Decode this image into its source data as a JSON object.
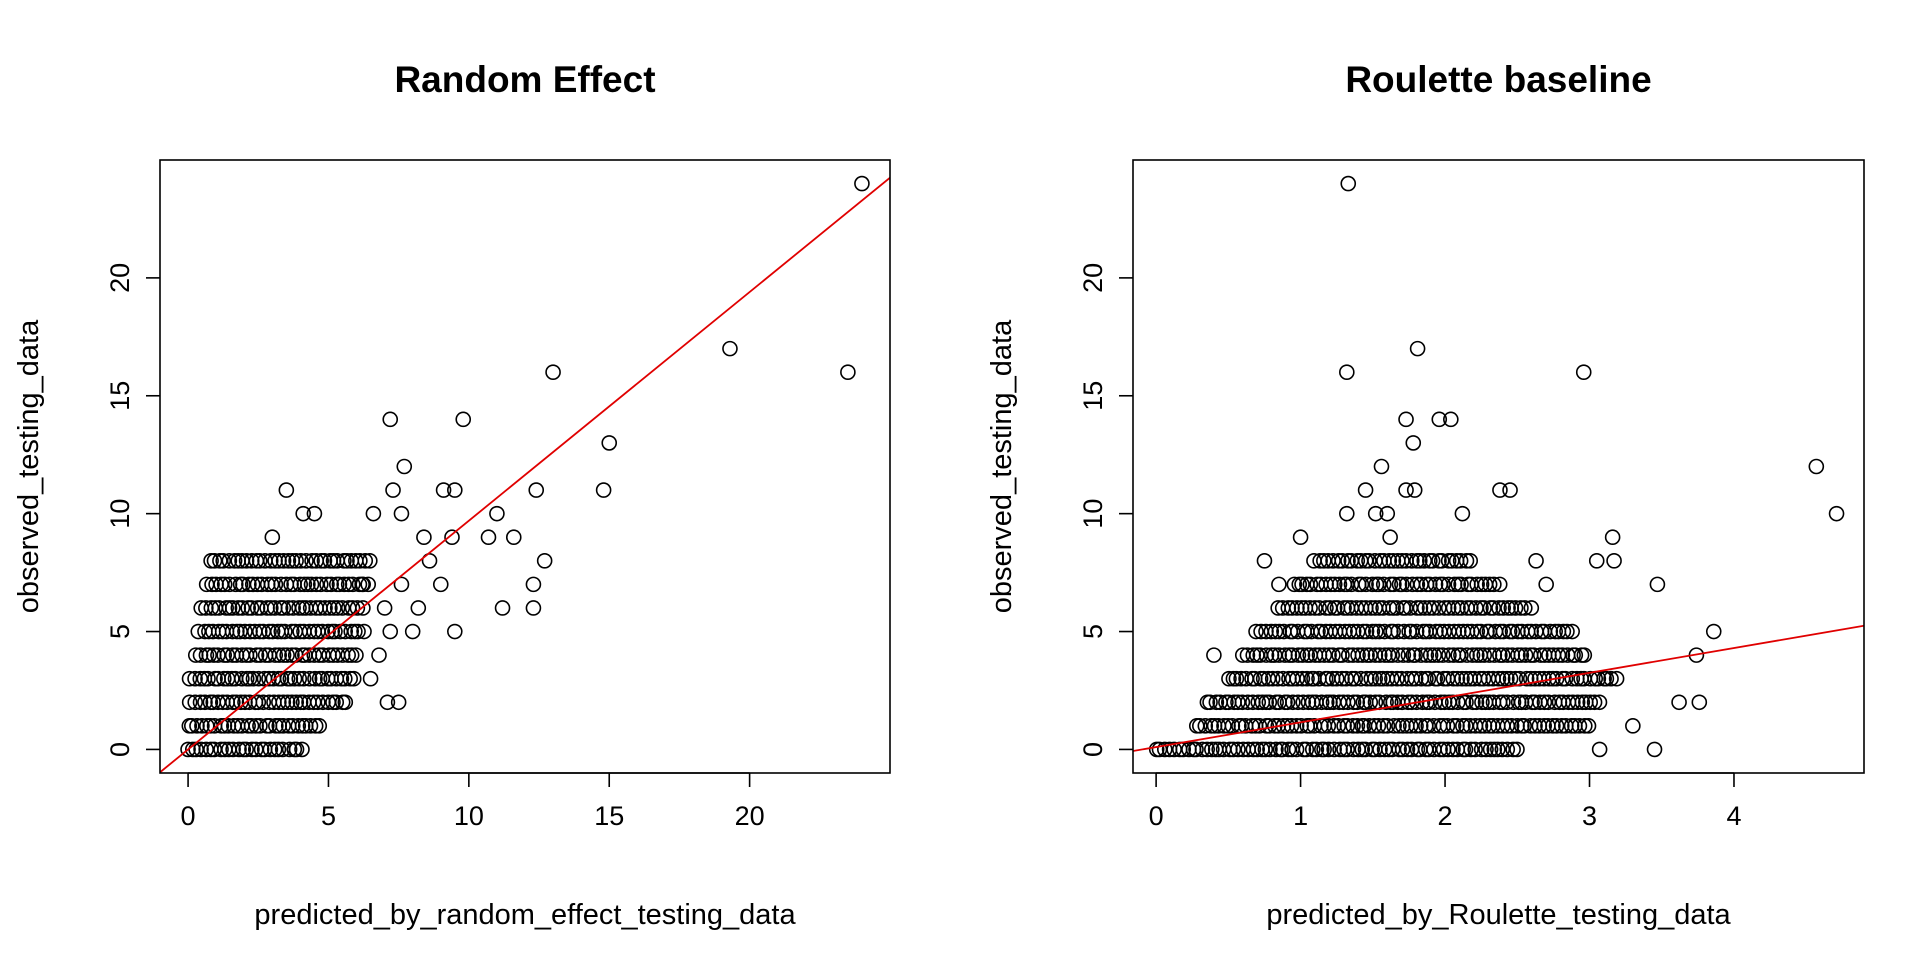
{
  "colors": {
    "points": "#000000",
    "fit_line": "#e00000",
    "background": "#ffffff"
  },
  "chart_data": [
    {
      "type": "scatter",
      "title": "Random Effect",
      "xlabel": "predicted_by_random_effect_testing_data",
      "ylabel": "observed_testing_data",
      "xlim": [
        -1,
        25
      ],
      "ylim": [
        -1,
        25
      ],
      "xticks": [
        0,
        5,
        10,
        15,
        20
      ],
      "yticks": [
        0,
        5,
        10,
        15,
        20
      ],
      "fit_line": {
        "intercept": 0.0,
        "slope": 0.97
      },
      "scatter_points": {
        "x": [
          24.0,
          23.5,
          19.3,
          13.0,
          15.0,
          14.8,
          12.4,
          12.7,
          12.3,
          11.6,
          11.2,
          11.0,
          10.7,
          9.8,
          9.5,
          9.4,
          9.5,
          9.1,
          9.0,
          8.6,
          8.4,
          8.2,
          7.7,
          7.6,
          7.5,
          7.3,
          7.1,
          7.2,
          7.0,
          6.8,
          6.6,
          6.2,
          5.9,
          5.6,
          3.5,
          4.1,
          4.5,
          3.0,
          7.6,
          7.2,
          8.0,
          6.5,
          12.3
        ],
        "y": [
          24,
          16,
          17,
          16,
          13,
          11,
          11,
          8,
          6,
          9,
          6,
          10,
          9,
          14,
          11,
          9,
          5,
          11,
          7,
          8,
          9,
          6,
          12,
          10,
          2,
          11,
          2,
          14,
          6,
          4,
          10,
          7,
          3,
          2,
          11,
          10,
          10,
          9,
          7,
          5,
          5,
          3,
          7
        ]
      },
      "dense_band": {
        "rows": [
          0,
          1,
          2,
          3,
          4,
          5,
          6,
          7,
          8
        ],
        "x_from": [
          0.0,
          0.0,
          0.1,
          0.1,
          0.3,
          0.4,
          0.5,
          0.7,
          0.8
        ],
        "x_to": [
          4.2,
          4.8,
          5.5,
          5.8,
          6.0,
          6.3,
          6.3,
          6.4,
          6.5
        ]
      }
    },
    {
      "type": "scatter",
      "title": "Roulette baseline",
      "xlabel": "predicted_by_Roulette_testing_data",
      "ylabel": "observed_testing_data",
      "xlim": [
        -0.16,
        4.9
      ],
      "ylim": [
        -1,
        25
      ],
      "xticks": [
        0,
        1,
        2,
        3,
        4
      ],
      "yticks": [
        0,
        5,
        10,
        15,
        20
      ],
      "fit_line": {
        "intercept": 0.1,
        "slope": 1.05
      },
      "scatter_points": {
        "x": [
          1.33,
          1.32,
          1.81,
          2.96,
          4.57,
          4.71,
          1.73,
          1.78,
          1.96,
          2.04,
          1.56,
          1.73,
          1.79,
          1.45,
          1.52,
          1.6,
          2.38,
          2.45,
          2.12,
          1.32,
          3.16,
          3.05,
          3.17,
          2.63,
          2.7,
          3.47,
          3.86,
          3.74,
          3.62,
          3.76,
          3.45,
          3.3,
          3.07,
          0.75,
          0.4,
          1.0,
          0.85,
          1.62
        ],
        "y": [
          24,
          16,
          17,
          16,
          12,
          10,
          14,
          13,
          14,
          14,
          12,
          11,
          11,
          11,
          10,
          10,
          11,
          11,
          10,
          10,
          9,
          8,
          8,
          8,
          7,
          7,
          5,
          4,
          2,
          2,
          0,
          1,
          0,
          8,
          4,
          9,
          7,
          9
        ]
      },
      "dense_band": {
        "rows": [
          0,
          1,
          2,
          3,
          4,
          5,
          6,
          7,
          8
        ],
        "x_from": [
          0.0,
          0.28,
          0.35,
          0.5,
          0.6,
          0.7,
          0.85,
          0.95,
          1.1
        ],
        "x_to": [
          2.5,
          3.0,
          3.1,
          3.2,
          3.0,
          2.9,
          2.6,
          2.4,
          2.2
        ]
      }
    }
  ]
}
